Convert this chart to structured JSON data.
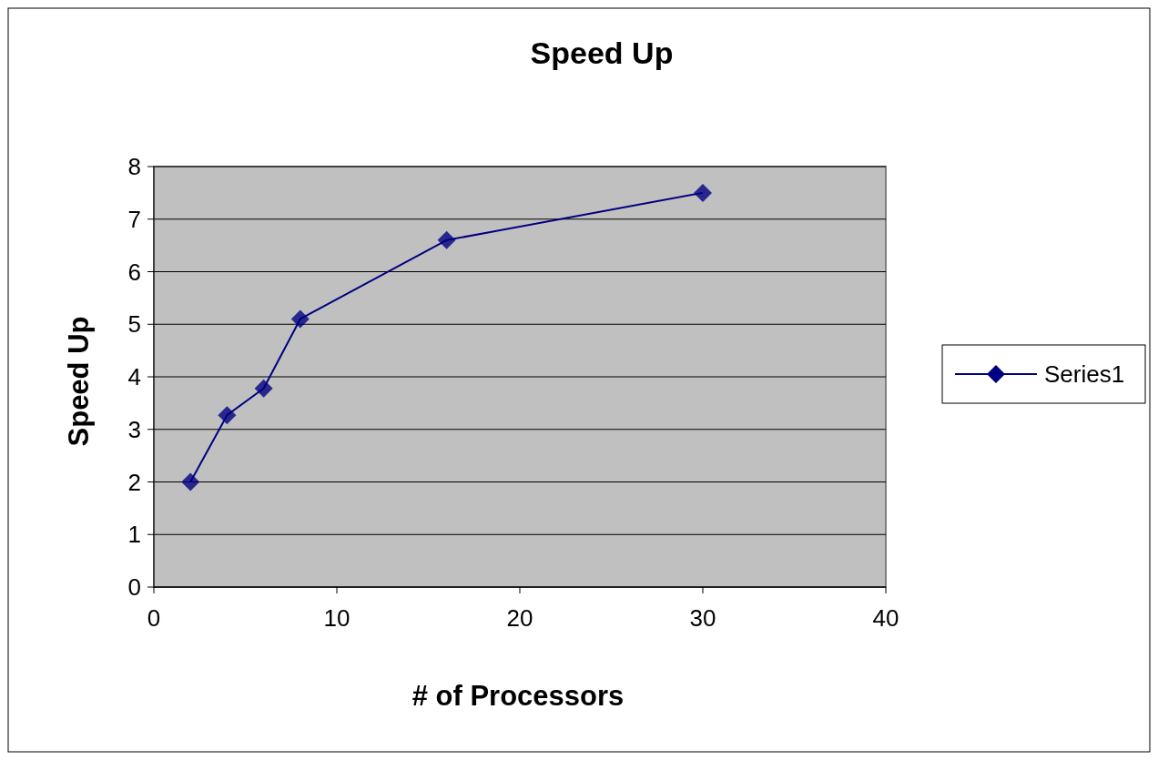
{
  "chart_data": {
    "type": "line",
    "title": "Speed Up",
    "xlabel": "# of Processors",
    "ylabel": "Speed Up",
    "series": [
      {
        "name": "Series1",
        "color": "#000080",
        "x": [
          2,
          4,
          6,
          8,
          16,
          30
        ],
        "values": [
          2,
          3.27,
          3.78,
          5.1,
          6.6,
          7.5
        ]
      }
    ],
    "xlim": [
      0,
      40
    ],
    "xticks": [
      0,
      10,
      20,
      30,
      40
    ],
    "ylim": [
      0,
      8
    ],
    "yticks": [
      0,
      1,
      2,
      3,
      4,
      5,
      6,
      7,
      8
    ],
    "grid": "y",
    "legend": "right",
    "marker": "diamond",
    "line_style": "solid"
  }
}
